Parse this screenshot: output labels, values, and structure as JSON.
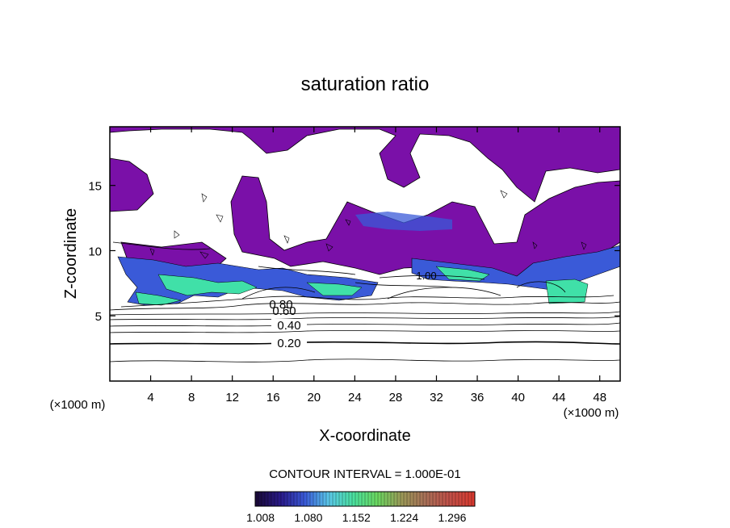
{
  "chart_data": {
    "type": "heatmap",
    "title": "saturation ratio",
    "xlabel": "X-coordinate",
    "ylabel": "Z-coordinate",
    "x_unit": "(×1000 m)",
    "z_unit": "(×1000 m)",
    "xlim": [
      0,
      50
    ],
    "ylim": [
      0,
      19.5
    ],
    "x_ticks": [
      "4",
      "8",
      "12",
      "16",
      "20",
      "24",
      "28",
      "32",
      "36",
      "40",
      "44",
      "48"
    ],
    "y_ticks": [
      "5",
      "10",
      "15"
    ],
    "x_tick_values": [
      4,
      8,
      12,
      16,
      20,
      24,
      28,
      32,
      36,
      40,
      44,
      48
    ],
    "y_tick_values": [
      5,
      10,
      15
    ],
    "contour_interval_label": "CONTOUR INTERVAL = 1.000E-01",
    "contour_labels": [
      "0.20",
      "0.40",
      "0.60",
      "0.80",
      "1.00"
    ],
    "colorbar": {
      "ticks": [
        "1.008",
        "1.080",
        "1.152",
        "1.224",
        "1.296"
      ],
      "range": [
        1.0,
        1.33
      ],
      "colors": [
        "#1a0a3a",
        "#2a1a8a",
        "#3a5ad8",
        "#5ac8e8",
        "#4ae0a0",
        "#6ad860",
        "#9a9a58",
        "#a87058",
        "#c05048",
        "#d83a30"
      ]
    },
    "colors": {
      "supersaturated_low": "#7a10a8",
      "supersaturated_mid": "#3a5ad8",
      "supersaturated_high": "#40e0a8",
      "contour": "#000000"
    }
  }
}
